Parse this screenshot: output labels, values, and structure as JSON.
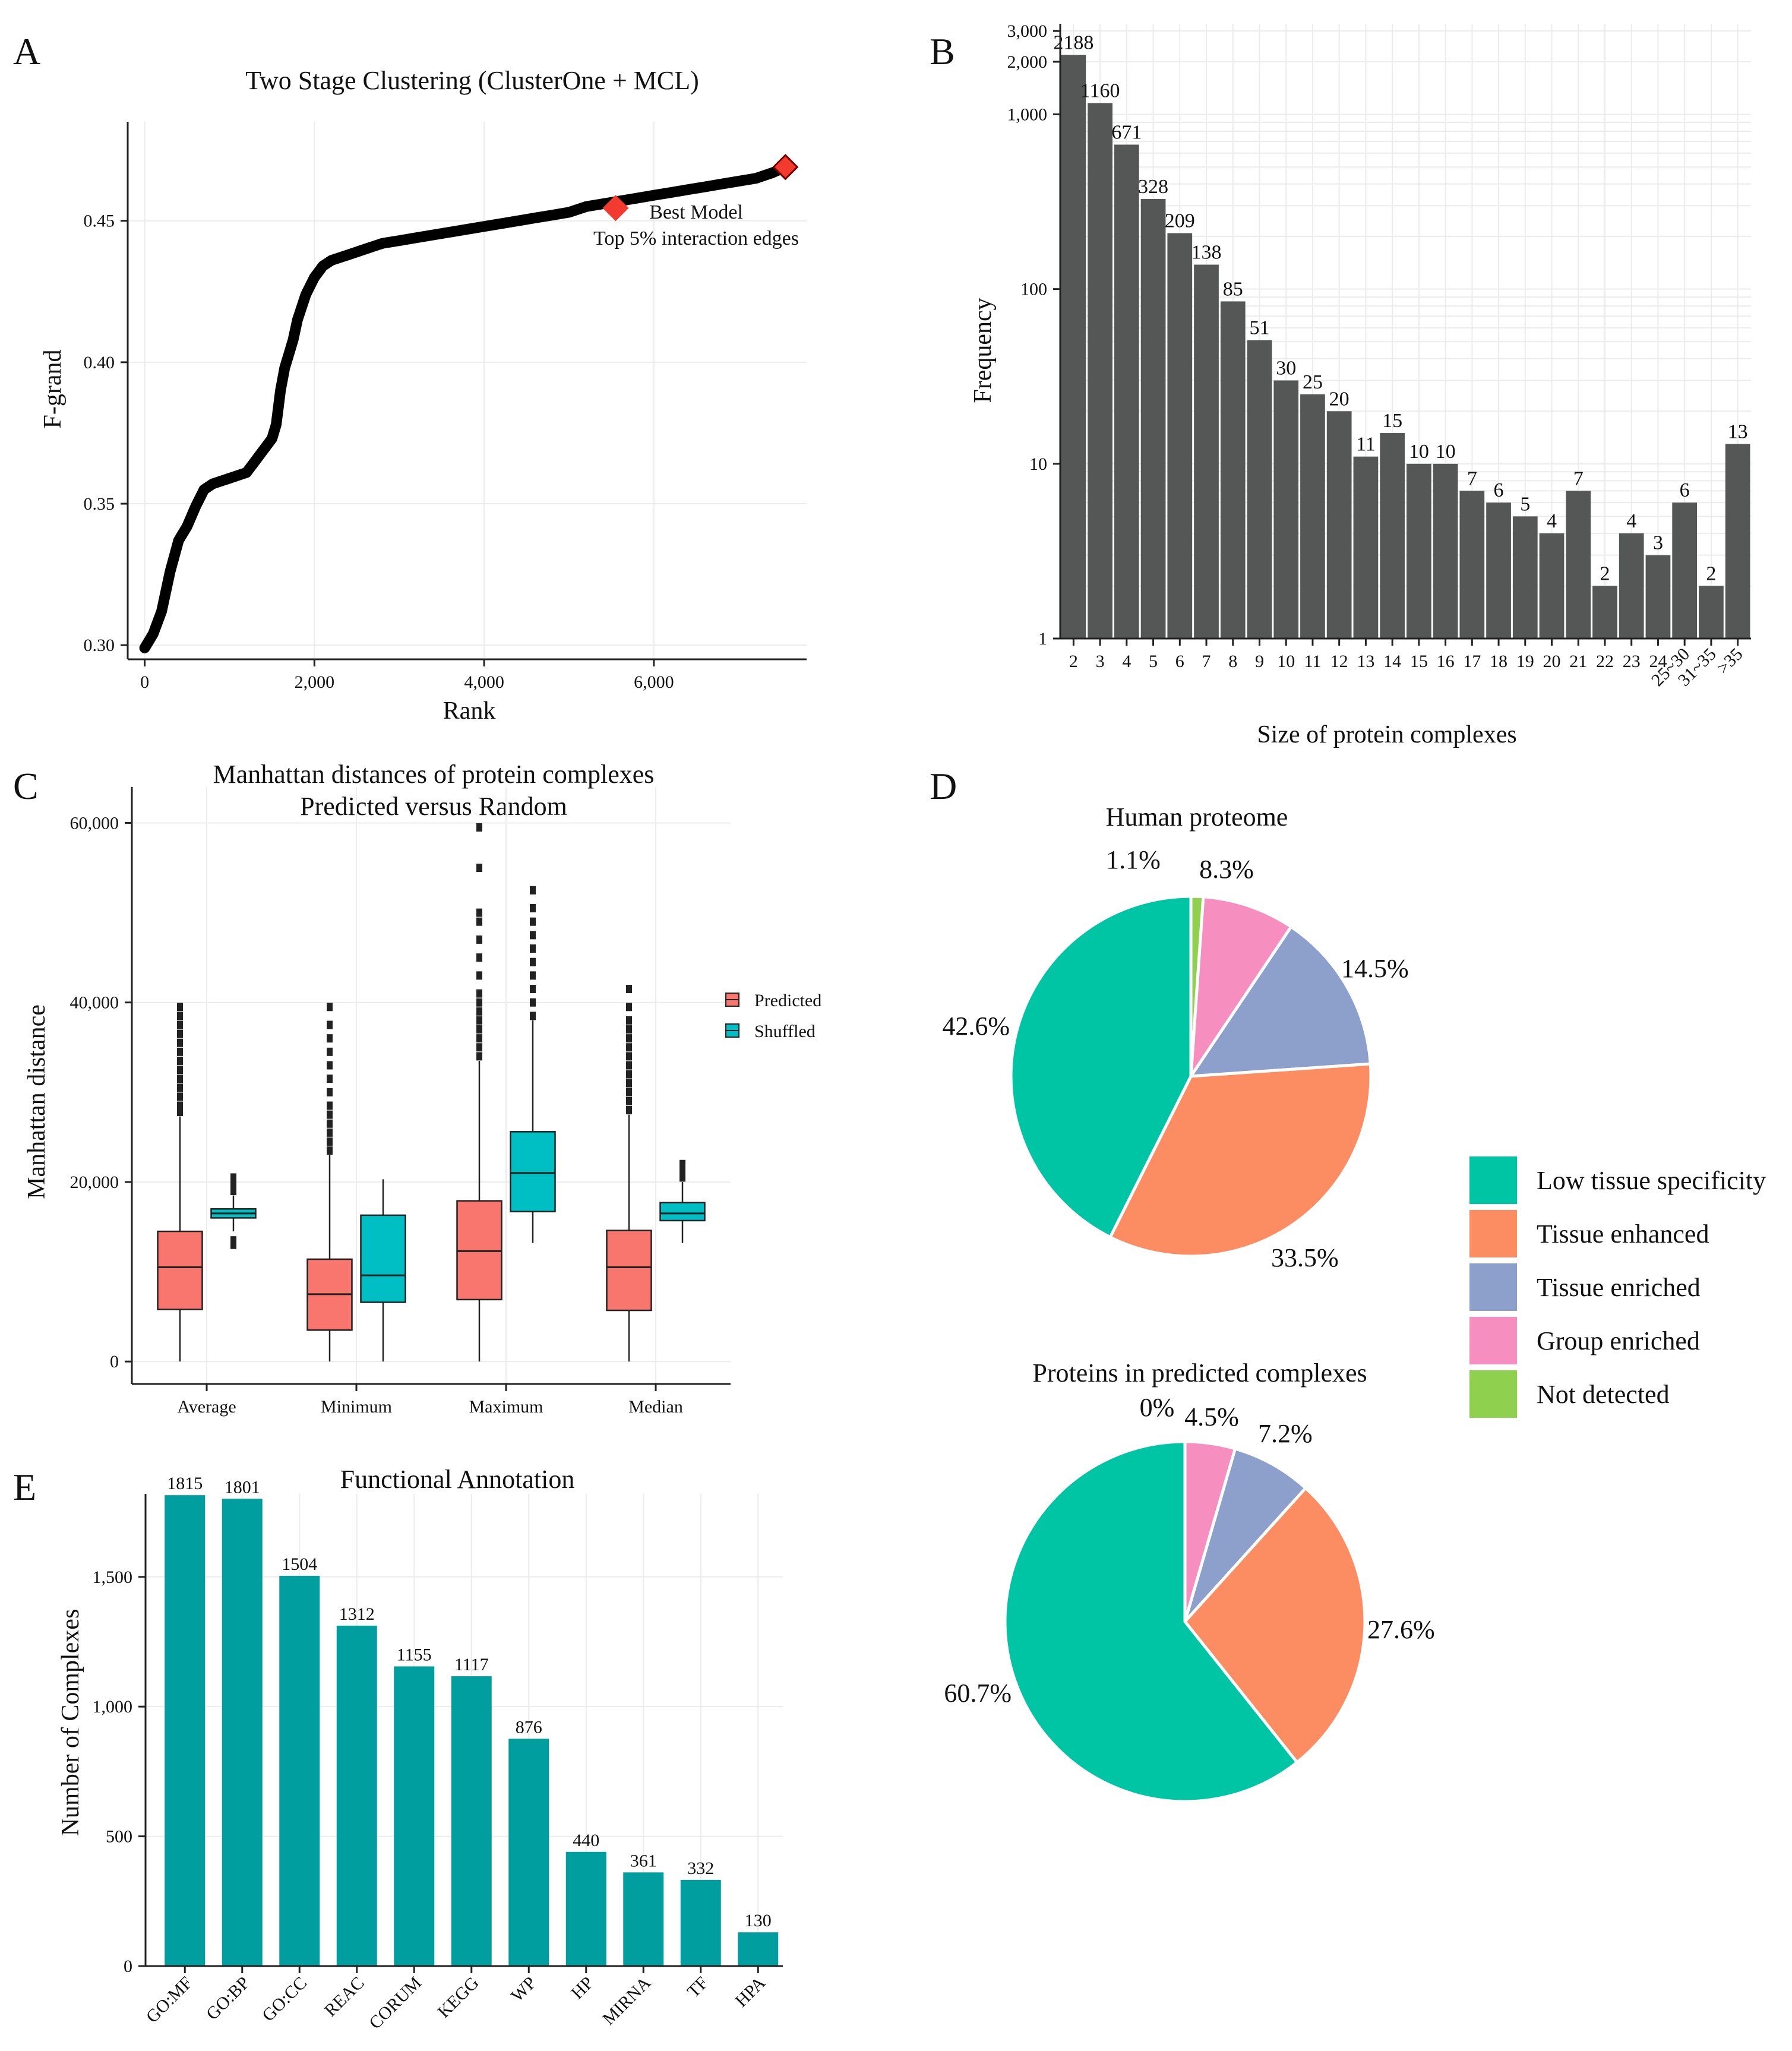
{
  "panels": {
    "A": {
      "letter": "A",
      "chart_data": {
        "type": "scatter",
        "title": "Two Stage Clustering (ClusterOne + MCL)",
        "xlabel": "Rank",
        "ylabel": "F-grand",
        "xlim": [
          -200,
          7800
        ],
        "ylim": [
          0.295,
          0.485
        ],
        "x_ticks": [
          0,
          2000,
          4000,
          6000
        ],
        "x_tick_labels": [
          "0",
          "2,000",
          "4,000",
          "6,000"
        ],
        "y_ticks": [
          0.3,
          0.35,
          0.4,
          0.45
        ],
        "y_tick_labels": [
          "0.30",
          "0.35",
          "0.40",
          "0.45"
        ],
        "curve": {
          "x": [
            0,
            100,
            200,
            300,
            400,
            500,
            600,
            700,
            800,
            900,
            1000,
            1100,
            1200,
            1300,
            1400,
            1500,
            1550,
            1600,
            1650,
            1700,
            1750,
            1800,
            1900,
            2000,
            2100,
            2200,
            2300,
            2400,
            2600,
            2800,
            3000,
            3200,
            3400,
            3600,
            3800,
            4000,
            4200,
            4400,
            4600,
            4800,
            5000,
            5200,
            5400,
            5600,
            5800,
            6000,
            6200,
            6400,
            6600,
            6800,
            7000,
            7200,
            7400,
            7550
          ],
          "y": [
            0.299,
            0.304,
            0.312,
            0.326,
            0.337,
            0.342,
            0.349,
            0.355,
            0.357,
            0.358,
            0.359,
            0.36,
            0.361,
            0.365,
            0.369,
            0.373,
            0.378,
            0.39,
            0.398,
            0.403,
            0.408,
            0.415,
            0.424,
            0.43,
            0.434,
            0.436,
            0.437,
            0.438,
            0.44,
            0.442,
            0.443,
            0.444,
            0.445,
            0.446,
            0.447,
            0.448,
            0.449,
            0.45,
            0.451,
            0.452,
            0.453,
            0.455,
            0.456,
            0.457,
            0.458,
            0.459,
            0.46,
            0.461,
            0.462,
            0.463,
            0.464,
            0.465,
            0.467,
            0.469
          ]
        },
        "best_model": {
          "x": 7550,
          "y": 0.469
        },
        "annotation_marker": {
          "x": 5550,
          "y": 0.4545
        },
        "annotation": [
          "Best Model",
          "Top 5% interaction edges"
        ]
      }
    },
    "B": {
      "letter": "B",
      "chart_data": {
        "type": "bar",
        "y_scale": "log",
        "xlabel": "Size of protein complexes",
        "ylabel": "Frequency",
        "categories": [
          "2",
          "3",
          "4",
          "5",
          "6",
          "7",
          "8",
          "9",
          "10",
          "11",
          "12",
          "13",
          "14",
          "15",
          "16",
          "17",
          "18",
          "19",
          "20",
          "21",
          "22",
          "23",
          "24",
          "25~30",
          "31~35",
          ">35"
        ],
        "values": [
          2188,
          1160,
          671,
          328,
          209,
          138,
          85,
          51,
          30,
          25,
          20,
          11,
          15,
          10,
          10,
          7,
          6,
          5,
          4,
          7,
          2,
          4,
          3,
          6,
          2,
          13
        ],
        "data_labels": [
          "2188",
          "1160",
          "671",
          "328",
          "209",
          "138",
          "85",
          "51",
          "30",
          "25",
          "20",
          "11",
          "15",
          "10",
          "10",
          "7",
          "6",
          "5",
          "4",
          "7",
          "2",
          "4",
          "3",
          "6",
          "2",
          "13"
        ],
        "ylim": [
          1,
          3300
        ],
        "y_ticks": [
          1,
          10,
          100,
          1000,
          2000,
          3000
        ],
        "y_tick_labels": [
          "1",
          "10",
          "100",
          "1,000",
          "2,000",
          "3,000"
        ]
      }
    },
    "C": {
      "letter": "C",
      "chart_data": {
        "type": "boxplot",
        "title": [
          "Manhattan distances of protein complexes",
          "Predicted versus Random"
        ],
        "xlabel": "",
        "ylabel": "Manhattan distance",
        "categories": [
          "Average",
          "Minimum",
          "Maximum",
          "Median"
        ],
        "ylim": [
          -2500,
          64000
        ],
        "y_ticks": [
          0,
          20000,
          40000,
          60000
        ],
        "y_tick_labels": [
          "0",
          "20,000",
          "40,000",
          "60,000"
        ],
        "legend": [
          "Predicted",
          "Shuffled"
        ],
        "series": [
          {
            "name": "Predicted",
            "color": "#F8766D",
            "boxes": [
              {
                "low": 0,
                "q1": 5800,
                "median": 10500,
                "q3": 14500,
                "high": 27300,
                "outliers": [
                  27800,
                  28500,
                  29500,
                  30500,
                  31500,
                  32500,
                  33500,
                  34500,
                  35500,
                  36500,
                  37500,
                  38500,
                  39500
                ]
              },
              {
                "low": 0,
                "q1": 3500,
                "median": 7500,
                "q3": 11400,
                "high": 23000,
                "outliers": [
                  23500,
                  24500,
                  25500,
                  26500,
                  27500,
                  28500,
                  30000,
                  31500,
                  33000,
                  34500,
                  36000,
                  37500,
                  39500
                ]
              },
              {
                "low": 0,
                "q1": 6900,
                "median": 12300,
                "q3": 17900,
                "high": 33500,
                "outliers": [
                  34000,
                  35000,
                  36000,
                  37000,
                  38000,
                  39000,
                  40000,
                  41000,
                  43000,
                  45000,
                  47000,
                  49000,
                  50000,
                  55000,
                  59500
                ]
              },
              {
                "low": 0,
                "q1": 5700,
                "median": 10500,
                "q3": 14600,
                "high": 27500,
                "outliers": [
                  28000,
                  29000,
                  30000,
                  31000,
                  32000,
                  33000,
                  34000,
                  35000,
                  36000,
                  37000,
                  38000,
                  39500,
                  41500
                ]
              }
            ]
          },
          {
            "name": "Shuffled",
            "color": "#00BFC4",
            "boxes": [
              {
                "low": 14500,
                "q1": 16000,
                "median": 16500,
                "q3": 17000,
                "high": 18500,
                "outliers": [
                  13000,
                  13500,
                  19000,
                  19500,
                  20000,
                  20500
                ]
              },
              {
                "low": 0,
                "q1": 6600,
                "median": 9600,
                "q3": 16300,
                "high": 20300,
                "outliers": []
              },
              {
                "low": 13200,
                "q1": 16700,
                "median": 21000,
                "q3": 25600,
                "high": 38000,
                "outliers": [
                  38500,
                  40000,
                  41500,
                  43000,
                  44500,
                  46000,
                  47500,
                  49000,
                  50500,
                  52500
                ]
              },
              {
                "low": 13200,
                "q1": 15700,
                "median": 16500,
                "q3": 17700,
                "high": 20000,
                "outliers": [
                  20500,
                  21000,
                  21500,
                  22000
                ]
              }
            ]
          }
        ]
      }
    },
    "D": {
      "letter": "D",
      "legend": {
        "labels": [
          "Low tissue specificity",
          "Tissue enhanced",
          "Tissue enriched",
          "Group enriched",
          "Not detected"
        ],
        "colors": [
          "#00C5A4",
          "#FC8D62",
          "#8DA0CB",
          "#F68FBF",
          "#8FD14F"
        ]
      },
      "chart_data": [
        {
          "type": "pie",
          "title": "Human proteome",
          "slices": [
            {
              "name": "Not detected",
              "value": 1.1,
              "label": "1.1%",
              "color": "#8FD14F"
            },
            {
              "name": "Group enriched",
              "value": 8.3,
              "label": "8.3%",
              "color": "#F68FBF"
            },
            {
              "name": "Tissue enriched",
              "value": 14.5,
              "label": "14.5%",
              "color": "#8DA0CB"
            },
            {
              "name": "Tissue enhanced",
              "value": 33.5,
              "label": "33.5%",
              "color": "#FC8D62"
            },
            {
              "name": "Low tissue specificity",
              "value": 42.6,
              "label": "42.6%",
              "color": "#00C5A4"
            }
          ]
        },
        {
          "type": "pie",
          "title": "Proteins in predicted complexes",
          "slices": [
            {
              "name": "Not detected",
              "value": 0,
              "label": "0%",
              "color": "#8FD14F"
            },
            {
              "name": "Group enriched",
              "value": 4.5,
              "label": "4.5%",
              "color": "#F68FBF"
            },
            {
              "name": "Tissue enriched",
              "value": 7.2,
              "label": "7.2%",
              "color": "#8DA0CB"
            },
            {
              "name": "Tissue enhanced",
              "value": 27.6,
              "label": "27.6%",
              "color": "#FC8D62"
            },
            {
              "name": "Low tissue specificity",
              "value": 60.7,
              "label": "60.7%",
              "color": "#00C5A4"
            }
          ]
        }
      ]
    },
    "E": {
      "letter": "E",
      "chart_data": {
        "type": "bar",
        "title": "Functional Annotation",
        "xlabel": "",
        "ylabel": "Number of Complexes",
        "color": "#009E9E",
        "categories": [
          "GO:MF",
          "GO:BP",
          "GO:CC",
          "REAC",
          "CORUM",
          "KEGG",
          "WP",
          "HP",
          "MIRNA",
          "TF",
          "HPA"
        ],
        "values": [
          1815,
          1801,
          1504,
          1312,
          1155,
          1117,
          876,
          440,
          361,
          332,
          130
        ],
        "data_labels": [
          "1815",
          "1801",
          "1504",
          "1312",
          "1155",
          "1117",
          "876",
          "440",
          "361",
          "332",
          "130"
        ],
        "ylim": [
          0,
          1820
        ],
        "y_ticks": [
          0,
          500,
          1000,
          1500
        ],
        "y_tick_labels": [
          "0",
          "500",
          "1,000",
          "1,500"
        ]
      }
    }
  }
}
